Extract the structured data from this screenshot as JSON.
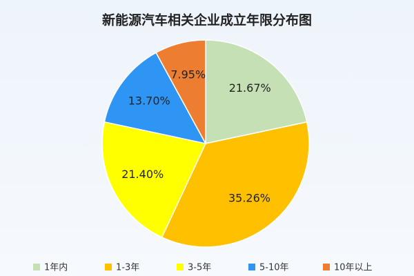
{
  "chart_data": {
    "type": "pie",
    "title": "新能源汽车相关企业成立年限分布图",
    "categories": [
      "1年内",
      "1-3年",
      "3-5年",
      "5-10年",
      "10年以上"
    ],
    "values": [
      21.67,
      35.26,
      21.4,
      13.7,
      7.95
    ],
    "value_labels": [
      "21.67%",
      "35.26%",
      "21.40%",
      "13.70%",
      "7.95%"
    ],
    "colors": [
      "#c5e0b4",
      "#ffc000",
      "#ffff00",
      "#2f95f5",
      "#ed7d31"
    ],
    "legend": "bottom"
  }
}
